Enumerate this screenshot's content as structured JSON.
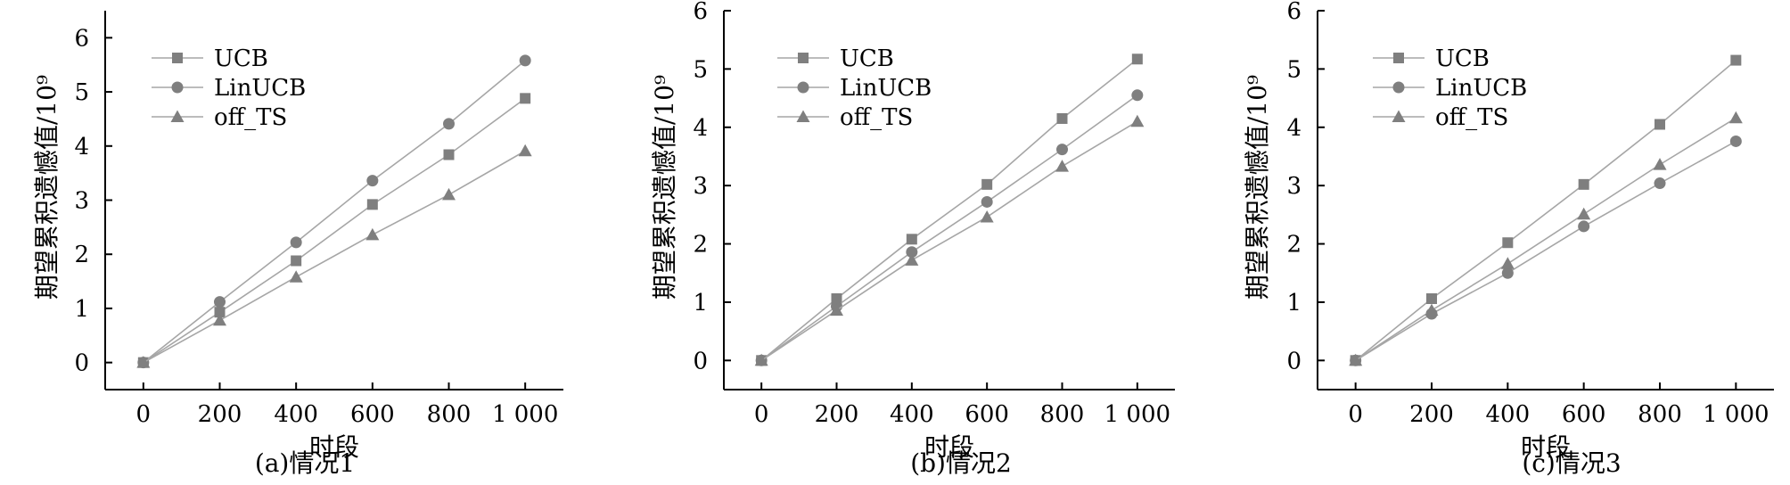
{
  "figure": {
    "panels": [
      {
        "caption": "(a)情况1",
        "chart_data": {
          "type": "line",
          "x": [
            0,
            200,
            400,
            600,
            800,
            1000
          ],
          "x_tick_labels": [
            "0",
            "200",
            "400",
            "600",
            "800",
            "1 000"
          ],
          "y_ticks": [
            0,
            1,
            2,
            3,
            4,
            5,
            6
          ],
          "xlim": [
            -100,
            1100
          ],
          "ylim": [
            -0.5,
            6.5
          ],
          "xlabel": "时段",
          "ylabel": "期望累积遗憾值/10⁹",
          "legend_position": "top-left",
          "series": [
            {
              "name": "UCB",
              "marker": "square",
              "values": [
                0,
                0.93,
                1.88,
                2.92,
                3.84,
                4.88
              ]
            },
            {
              "name": "LinUCB",
              "marker": "circle",
              "values": [
                0,
                1.12,
                2.22,
                3.36,
                4.41,
                5.58
              ]
            },
            {
              "name": "off_TS",
              "marker": "triangle",
              "values": [
                0,
                0.78,
                1.58,
                2.36,
                3.1,
                3.91
              ]
            }
          ]
        }
      },
      {
        "caption": "(b)情况2",
        "chart_data": {
          "type": "line",
          "x": [
            0,
            200,
            400,
            600,
            800,
            1000
          ],
          "x_tick_labels": [
            "0",
            "200",
            "400",
            "600",
            "800",
            "1 000"
          ],
          "y_ticks": [
            0,
            1,
            2,
            3,
            4,
            5,
            6
          ],
          "xlim": [
            -100,
            1100
          ],
          "ylim": [
            -0.5,
            6
          ],
          "xlabel": "时段",
          "ylabel": "期望累积遗憾值/10⁹",
          "legend_position": "top-left",
          "series": [
            {
              "name": "UCB",
              "marker": "square",
              "values": [
                0,
                1.06,
                2.08,
                3.02,
                4.15,
                5.17
              ]
            },
            {
              "name": "LinUCB",
              "marker": "circle",
              "values": [
                0,
                0.93,
                1.86,
                2.72,
                3.62,
                4.55
              ]
            },
            {
              "name": "off_TS",
              "marker": "triangle",
              "values": [
                0,
                0.86,
                1.72,
                2.46,
                3.33,
                4.1
              ]
            }
          ]
        }
      },
      {
        "caption": "(c)情况3",
        "chart_data": {
          "type": "line",
          "x": [
            0,
            200,
            400,
            600,
            800,
            1000
          ],
          "x_tick_labels": [
            "0",
            "200",
            "400",
            "600",
            "800",
            "1 000"
          ],
          "y_ticks": [
            0,
            1,
            2,
            3,
            4,
            5,
            6
          ],
          "xlim": [
            -100,
            1100
          ],
          "ylim": [
            -0.5,
            6
          ],
          "xlabel": "时段",
          "ylabel": "期望累积遗憾值/10⁹",
          "legend_position": "top-left",
          "series": [
            {
              "name": "UCB",
              "marker": "square",
              "values": [
                0,
                1.06,
                2.02,
                3.02,
                4.05,
                5.15
              ]
            },
            {
              "name": "LinUCB",
              "marker": "circle",
              "values": [
                0,
                0.8,
                1.5,
                2.3,
                3.04,
                3.76
              ]
            },
            {
              "name": "off_TS",
              "marker": "triangle",
              "values": [
                0,
                0.86,
                1.66,
                2.51,
                3.36,
                4.16
              ]
            }
          ]
        }
      }
    ]
  },
  "colors": {
    "line": "#a6a6a6",
    "marker": "#7f7f7f",
    "axis": "#000000"
  }
}
